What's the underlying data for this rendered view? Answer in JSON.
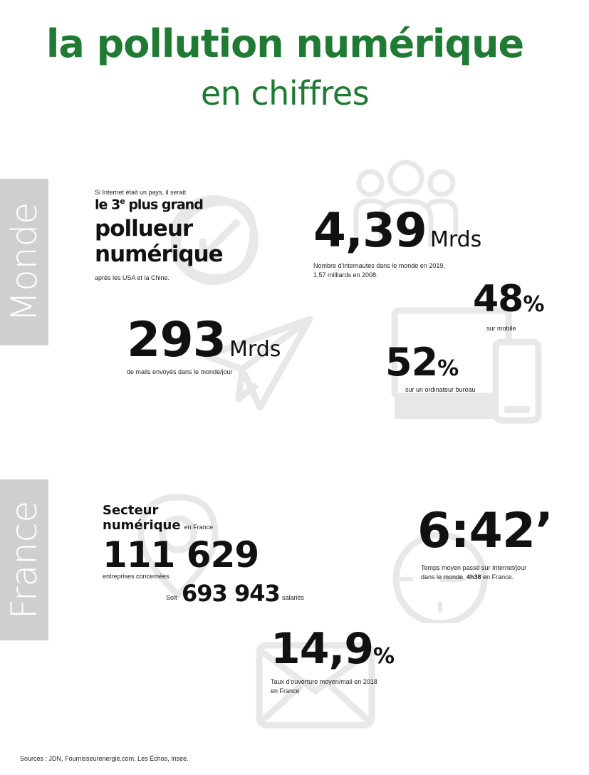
{
  "title": {
    "line1": "la pollution numérique",
    "line2": "en chiffres"
  },
  "sections": {
    "monde": "Monde",
    "france": "France"
  },
  "monde": {
    "pays": {
      "intro": "Si Internet était un pays, il serait",
      "rank_pre": "le 3",
      "rank_sup": "e",
      "rank_post": " plus grand",
      "line2": "pollueur",
      "line3": "numérique",
      "after": "après les USA et la Chine."
    },
    "internautes": {
      "value": "4,39",
      "unit": "Mrds",
      "line1": "Nombre d'internautes dans le monde en 2019,",
      "line2": "1,57 milliards en 2008."
    },
    "mobile": {
      "value": "48",
      "unit": "%",
      "label": "sur mobile"
    },
    "mails": {
      "value": "293",
      "unit": "Mrds",
      "label": "de mails envoyés dans le monde/jour"
    },
    "bureau": {
      "value": "52",
      "unit": "%",
      "label": "sur un ordinateur bureau"
    }
  },
  "france": {
    "secteur": {
      "line1": "Secteur",
      "line2": "numérique",
      "suffix": "en France",
      "value": "111 629",
      "label": "entreprises concernées",
      "soit": "Soit",
      "salaries_value": "693 943",
      "salaries_label": "salariés"
    },
    "temps": {
      "value": "6:42’",
      "line1": "Temps moyen passé sur Internet/jour",
      "line2_pre": "dans le monde, ",
      "line2_bold": "4h38",
      "line2_post": " en France."
    },
    "ouverture": {
      "value": "14,9",
      "unit": "%",
      "line1": "Taux d'ouverture moyen/mail en 2018",
      "line2": "en France"
    }
  },
  "sources": "Sources : JDN, Fournisseurenergie.com, Les Échos, Insee.",
  "colors": {
    "accent": "#1f7a34",
    "side_bar": "#cfcfcf",
    "watermark": "#e6e6e6"
  },
  "icons": [
    "leaf-icon",
    "users-icon",
    "paper-plane-icon",
    "computer-icon",
    "phone-icon",
    "location-pin-icon",
    "clock-icon",
    "envelope-icon"
  ]
}
